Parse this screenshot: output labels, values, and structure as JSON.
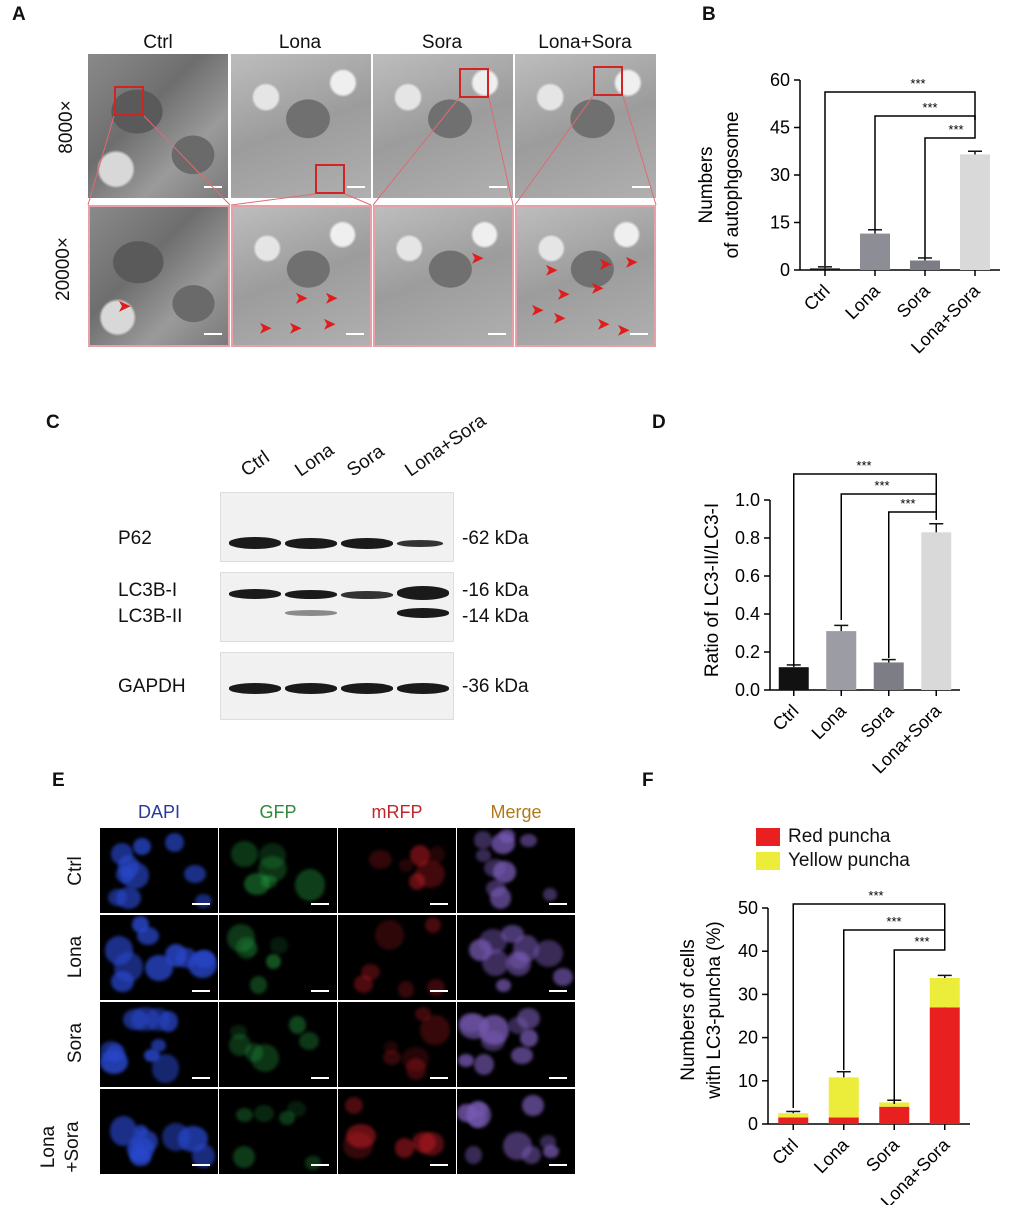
{
  "panelA": {
    "letter": "A",
    "columns": [
      "Ctrl",
      "Lona",
      "Sora",
      "Lona+Sora"
    ],
    "rows": [
      "8000×",
      "20000×"
    ]
  },
  "panelB": {
    "letter": "B",
    "ylabel_line1": "Numbers",
    "ylabel_line2": "of autophgosome",
    "significance": [
      "***",
      "***",
      "***"
    ]
  },
  "panelC": {
    "letter": "C",
    "lanes": [
      "Ctrl",
      "Lona",
      "Sora",
      "Lona+Sora"
    ],
    "rows": [
      {
        "label": "P62",
        "kda": "-62 kDa"
      },
      {
        "label": "LC3B-I",
        "kda": "-16 kDa"
      },
      {
        "label": "LC3B-II",
        "kda": "-14 kDa"
      },
      {
        "label": "GAPDH",
        "kda": "-36 kDa"
      }
    ]
  },
  "panelD": {
    "letter": "D",
    "ylabel": "Ratio of LC3-II/LC3-I",
    "significance": [
      "***",
      "***",
      "***"
    ]
  },
  "panelE": {
    "letter": "E",
    "channels": [
      "DAPI",
      "GFP",
      "mRFP",
      "Merge"
    ],
    "channel_colors": [
      "#2a3a9c",
      "#2e8a3a",
      "#c0262c",
      "#b07818"
    ],
    "rows": [
      "Ctrl",
      "Lona",
      "Sora"
    ],
    "last_row_line1": "Lona",
    "last_row_line2": "+Sora"
  },
  "panelF": {
    "letter": "F",
    "ylabel_line1": "Numbers of cells",
    "ylabel_line2": "with LC3-puncha (%)",
    "legend": [
      {
        "name": "Red puncha",
        "color": "#e8201f"
      },
      {
        "name": "Yellow puncha",
        "color": "#ecec3a"
      }
    ],
    "significance": [
      "***",
      "***",
      "***"
    ]
  },
  "chart_data": [
    {
      "type": "bar",
      "categories": [
        "Ctrl",
        "Lona",
        "Sora",
        "Lona+Sora"
      ],
      "values": [
        0.5,
        11.5,
        3,
        36.5
      ],
      "errors": [
        0.5,
        1.2,
        0.8,
        1.0
      ],
      "colors": [
        "#111111",
        "#8d8d95",
        "#7d7d85",
        "#d9d9d9"
      ],
      "ylim": [
        0,
        60
      ],
      "yticks": [
        0,
        15,
        30,
        45,
        60
      ]
    },
    {
      "type": "bar",
      "categories": [
        "Ctrl",
        "Lona",
        "Sora",
        "Lona+Sora"
      ],
      "values": [
        0.12,
        0.31,
        0.145,
        0.83
      ],
      "errors": [
        0.012,
        0.03,
        0.015,
        0.045
      ],
      "colors": [
        "#111111",
        "#9c9ca4",
        "#7d7d85",
        "#d9d9d9"
      ],
      "ylim": [
        0,
        1.0
      ],
      "yticks": [
        "0.0",
        "0.2",
        "0.4",
        "0.6",
        "0.8",
        "1.0"
      ]
    },
    {
      "type": "bar",
      "stacked": true,
      "categories": [
        "Ctrl",
        "Lona",
        "Sora",
        "Lona+Sora"
      ],
      "series": [
        {
          "name": "Red puncha",
          "values": [
            1.5,
            1.5,
            4,
            27
          ],
          "errors": [
            0.5,
            0.4,
            0.5,
            1.5
          ]
        },
        {
          "name": "Yellow puncha",
          "values": [
            1.0,
            9.3,
            1.0,
            6.8
          ],
          "errors": [
            0.4,
            1.3,
            0.5,
            0.6
          ]
        }
      ],
      "ylim": [
        0,
        50
      ],
      "yticks": [
        0,
        10,
        20,
        30,
        40,
        50
      ]
    }
  ]
}
